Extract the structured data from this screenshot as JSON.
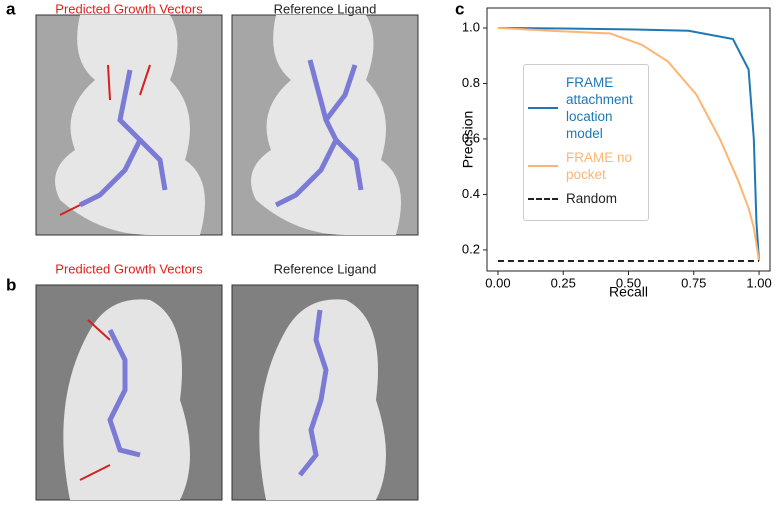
{
  "panels": [
    {
      "label": "a",
      "left_title": "Predicted Growth Vectors",
      "right_title": "Reference Ligand"
    },
    {
      "label": "b",
      "left_title": "Predicted Growth Vectors",
      "right_title": "Reference Ligand"
    }
  ],
  "chart_data": {
    "type": "line",
    "panel_label": "c",
    "x_label": "Recall",
    "y_label": "Precision",
    "xlim": [
      -0.042,
      1.042
    ],
    "ylim": [
      0.124,
      1.072
    ],
    "xticks": [
      {
        "value": 0,
        "label": "0.00"
      },
      0.25,
      {
        "value": 0.5,
        "label": "0.50"
      },
      0.75,
      {
        "value": 1,
        "label": "1.00"
      }
    ],
    "yticks": [
      0.2,
      0.4,
      0.6,
      0.8,
      {
        "value": 1,
        "label": "1.0"
      }
    ],
    "series": [
      {
        "name": "FRAME attachment location model",
        "color": "#1f77b4",
        "dash": false,
        "x": [
          0,
          0.25,
          0.5,
          0.73,
          0.9,
          0.96,
          0.98,
          0.99,
          1.0
        ],
        "values": [
          1.0,
          0.998,
          0.995,
          0.99,
          0.96,
          0.85,
          0.6,
          0.3,
          0.16
        ]
      },
      {
        "name": "FRAME no pocket",
        "color": "#fdb573",
        "dash": false,
        "x": [
          0,
          0.2,
          0.43,
          0.55,
          0.65,
          0.76,
          0.85,
          0.92,
          0.96,
          0.98,
          0.99,
          1.0
        ],
        "values": [
          1.0,
          0.99,
          0.98,
          0.94,
          0.88,
          0.76,
          0.6,
          0.45,
          0.35,
          0.28,
          0.22,
          0.16
        ]
      },
      {
        "name": "Random",
        "color": "#222222",
        "dash": true,
        "x": [
          0,
          1
        ],
        "values": [
          0.16,
          0.16
        ]
      }
    ]
  }
}
